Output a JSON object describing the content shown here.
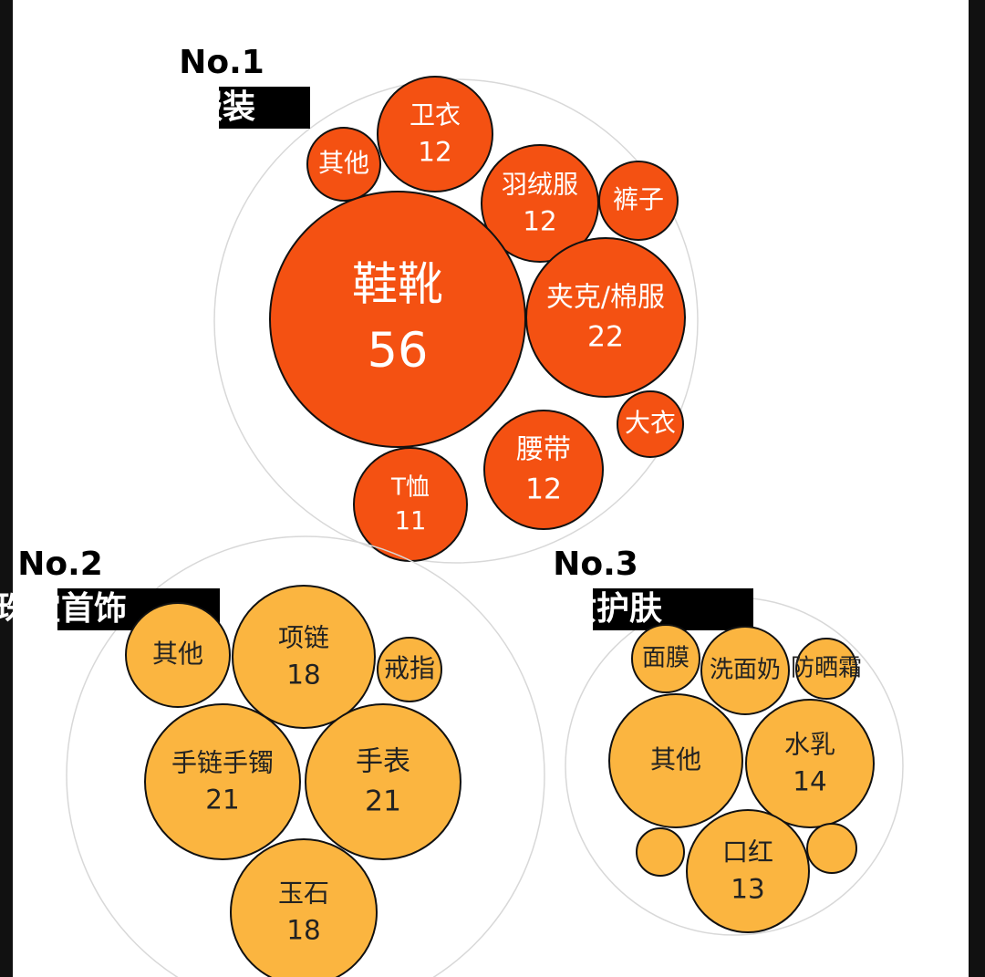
{
  "chart_data": [
    {
      "type": "bubble",
      "label": "No.1",
      "title": "服装",
      "color": "#f45112",
      "categories": [
        "其他",
        "卫衣",
        "羽绒服",
        "裤子",
        "鞋靴",
        "夹克/棉服",
        "大衣",
        "腰带",
        "T恤"
      ],
      "values": [
        null,
        12,
        12,
        null,
        56,
        22,
        null,
        12,
        11
      ]
    },
    {
      "type": "bubble",
      "label": "No.2",
      "title": "珠宝首饰",
      "color": "#fbb540",
      "categories": [
        "其他",
        "项链",
        "戒指",
        "手链手镯",
        "手表",
        "玉石"
      ],
      "values": [
        null,
        18,
        null,
        21,
        21,
        18
      ]
    },
    {
      "type": "bubble",
      "label": "No.3",
      "title": "美妆护肤",
      "color": "#fbb540",
      "categories": [
        "面膜",
        "洗面奶",
        "防晒霜",
        "其他",
        "水乳",
        null,
        "口红",
        null
      ],
      "values": [
        null,
        null,
        null,
        null,
        14,
        null,
        13,
        null
      ]
    }
  ]
}
